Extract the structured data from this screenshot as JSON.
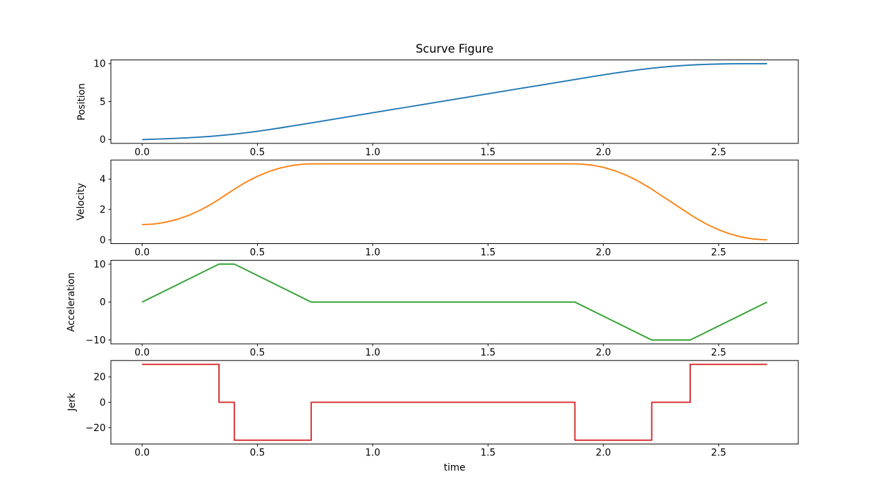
{
  "chart_data": {
    "type": "line",
    "title": "Scurve Figure",
    "xlabel": "time",
    "xlim": [
      -0.1355,
      2.8455
    ],
    "grid": false,
    "legend": "none",
    "xticks": {
      "values": [
        0,
        0.5,
        1.0,
        1.5,
        2.0,
        2.5
      ],
      "labels": [
        "0.0",
        "0.5",
        "1.0",
        "1.5",
        "2.0",
        "2.5"
      ]
    },
    "subplots": [
      {
        "name": "position",
        "ylabel": "Position",
        "color": "#1f77b4",
        "ylim": [
          -0.5,
          10.5
        ],
        "yticks": {
          "values": [
            0,
            5,
            10
          ],
          "labels": [
            "0",
            "5",
            "10"
          ]
        },
        "x": [
          0,
          0.05,
          0.1,
          0.15,
          0.2,
          0.25,
          0.3,
          0.3333,
          0.35,
          0.4,
          0.45,
          0.5,
          0.55,
          0.6,
          0.65,
          0.7,
          0.7333,
          0.75,
          0.8,
          0.85,
          0.9,
          0.95,
          1,
          1.05,
          1.1,
          1.15,
          1.2,
          1.25,
          1.3,
          1.35,
          1.4,
          1.45,
          1.5,
          1.55,
          1.6,
          1.65,
          1.7,
          1.75,
          1.8,
          1.85,
          1.8767,
          1.9,
          1.95,
          2,
          2.05,
          2.1,
          2.15,
          2.2,
          2.21,
          2.25,
          2.3,
          2.35,
          2.3767,
          2.4,
          2.45,
          2.5,
          2.55,
          2.6,
          2.65,
          2.7,
          2.71
        ],
        "y": [
          0,
          0.051,
          0.105,
          0.167,
          0.24,
          0.328,
          0.435,
          0.519,
          0.564,
          0.719,
          0.897,
          1.097,
          1.314,
          1.545,
          1.786,
          2.034,
          2.2,
          2.283,
          2.533,
          2.783,
          3.033,
          3.283,
          3.533,
          3.783,
          4.033,
          4.283,
          4.533,
          4.783,
          5.033,
          5.283,
          5.533,
          5.783,
          6.033,
          6.283,
          6.533,
          6.783,
          7.033,
          7.283,
          7.533,
          7.783,
          7.917,
          8.033,
          8.281,
          8.524,
          8.757,
          8.978,
          9.181,
          9.364,
          9.398,
          9.523,
          9.658,
          9.767,
          9.815,
          9.851,
          9.912,
          9.954,
          9.98,
          9.993,
          9.999,
          10,
          10
        ]
      },
      {
        "name": "velocity",
        "ylabel": "Velocity",
        "color": "#ff7f0e",
        "ylim": [
          -0.25,
          5.25
        ],
        "yticks": {
          "values": [
            0,
            2,
            4
          ],
          "labels": [
            "0",
            "2",
            "4"
          ]
        },
        "x": [
          0,
          0.05,
          0.1,
          0.15,
          0.2,
          0.25,
          0.3,
          0.3333,
          0.35,
          0.4,
          0.45,
          0.5,
          0.55,
          0.6,
          0.65,
          0.7,
          0.7333,
          0.75,
          0.8,
          0.85,
          0.9,
          0.95,
          1,
          1.05,
          1.1,
          1.15,
          1.2,
          1.25,
          1.3,
          1.35,
          1.4,
          1.45,
          1.5,
          1.55,
          1.6,
          1.65,
          1.7,
          1.75,
          1.8,
          1.85,
          1.8767,
          1.9,
          1.95,
          2,
          2.05,
          2.1,
          2.15,
          2.2,
          2.21,
          2.25,
          2.3,
          2.35,
          2.3767,
          2.4,
          2.45,
          2.5,
          2.55,
          2.6,
          2.65,
          2.7,
          2.71
        ],
        "y": [
          1,
          1.038,
          1.15,
          1.338,
          1.6,
          1.938,
          2.35,
          2.667,
          2.833,
          3.333,
          3.796,
          4.183,
          4.496,
          4.733,
          4.896,
          4.983,
          5,
          5,
          5,
          5,
          5,
          5,
          5,
          5,
          5,
          5,
          5,
          5,
          5,
          5,
          5,
          5,
          5,
          5,
          5,
          5,
          5,
          5,
          5,
          5,
          5,
          4.992,
          4.919,
          4.772,
          4.549,
          4.252,
          3.879,
          3.432,
          3.333,
          2.933,
          2.433,
          1.933,
          1.667,
          1.441,
          1.014,
          0.661,
          0.384,
          0.181,
          0.054,
          0.002,
          0
        ]
      },
      {
        "name": "acceleration",
        "ylabel": "Acceleration",
        "color": "#2ca02c",
        "ylim": [
          -11,
          11
        ],
        "yticks": {
          "values": [
            -10,
            0,
            10
          ],
          "labels": [
            "−10",
            "0",
            "10"
          ]
        },
        "x": [
          0,
          0.3333,
          0.4,
          0.7333,
          1.8767,
          2.21,
          2.3767,
          2.71
        ],
        "y": [
          0,
          10,
          10,
          0,
          0,
          -10,
          -10,
          0
        ]
      },
      {
        "name": "jerk",
        "ylabel": "Jerk",
        "color": "#d62728",
        "ylim": [
          -33,
          33
        ],
        "yticks": {
          "values": [
            -20,
            0,
            20
          ],
          "labels": [
            "−20",
            "0",
            "20"
          ]
        },
        "x": [
          0,
          0.3333,
          0.3333,
          0.4,
          0.4,
          0.7333,
          0.7333,
          1.8767,
          1.8767,
          2.21,
          2.21,
          2.3767,
          2.3767,
          2.71
        ],
        "y": [
          30,
          30,
          0,
          0,
          -30,
          -30,
          0,
          0,
          -30,
          -30,
          0,
          0,
          30,
          30
        ]
      }
    ]
  }
}
